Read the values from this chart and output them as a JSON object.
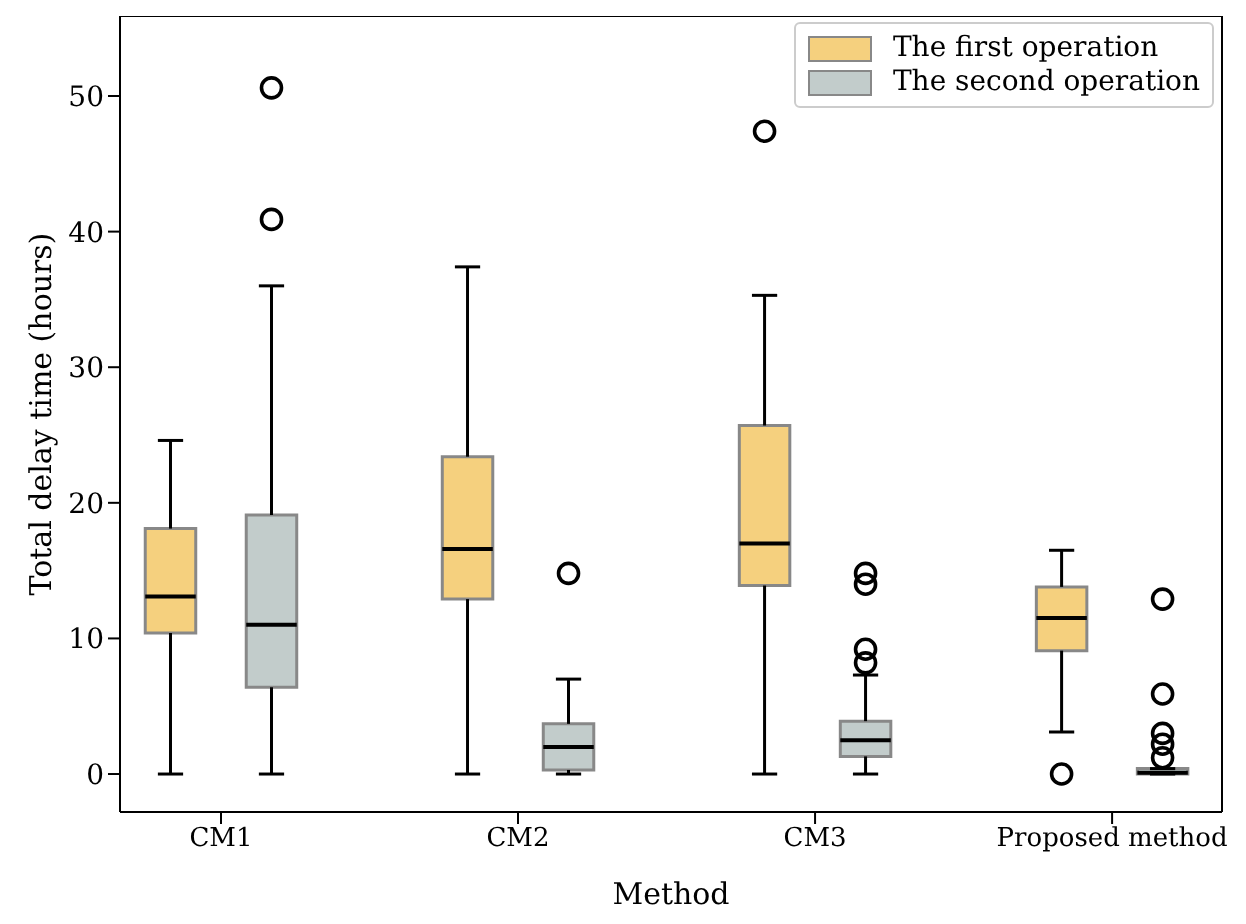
{
  "chart_data": {
    "type": "box",
    "xlabel": "Method",
    "ylabel": "Total delay time (hours)",
    "categories": [
      "CM1",
      "CM2",
      "CM3",
      "Proposed method"
    ],
    "ylim": [
      -2.8,
      55.9
    ],
    "yticks": [
      0,
      10,
      20,
      30,
      40,
      50
    ],
    "grid": false,
    "legend": "top right",
    "series": [
      {
        "name": "The first operation",
        "color": "#f5d07e",
        "boxes": [
          {
            "low": 0,
            "q1": 10.4,
            "median": 13.1,
            "q3": 18.1,
            "high": 24.6
          },
          {
            "low": 0,
            "q1": 12.9,
            "median": 16.6,
            "q3": 23.4,
            "high": 37.4
          },
          {
            "low": 0,
            "q1": 13.9,
            "median": 17.0,
            "q3": 25.7,
            "high": 35.3,
            "outliers": [
              47.4
            ]
          },
          {
            "low": 3.1,
            "q1": 9.1,
            "median": 11.5,
            "q3": 13.8,
            "high": 16.5,
            "outliers": [
              0
            ]
          }
        ]
      },
      {
        "name": "The second operation",
        "color": "#c2cccb",
        "boxes": [
          {
            "low": 0,
            "q1": 6.4,
            "median": 11.0,
            "q3": 19.1,
            "high": 36.0,
            "outliers": [
              40.9,
              50.6
            ]
          },
          {
            "low": 0,
            "q1": 0.3,
            "median": 2.0,
            "q3": 3.7,
            "high": 7.0,
            "outliers": [
              14.8
            ]
          },
          {
            "low": 0,
            "q1": 1.3,
            "median": 2.5,
            "q3": 3.9,
            "high": 7.3,
            "outliers": [
              8.2,
              9.2,
              14.0,
              14.8
            ]
          },
          {
            "low": 0,
            "q1": 0,
            "median": 0.1,
            "q3": 0.4,
            "high": 0.4,
            "outliers": [
              1.2,
              2.2,
              3.0,
              5.9,
              12.9
            ]
          }
        ]
      }
    ]
  }
}
